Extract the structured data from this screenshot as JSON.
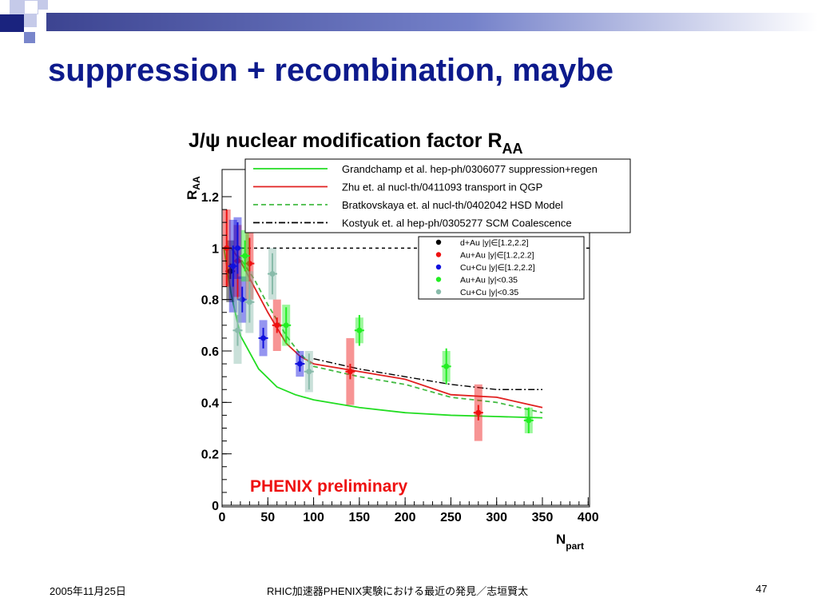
{
  "slide": {
    "title": "suppression + recombination, maybe",
    "footer_date": "2005年11月25日",
    "footer_center": "RHIC加速器PHENIX実験における最近の発見／志垣賢太",
    "page_number": "47"
  },
  "colors": {
    "title": "#0d1a8c",
    "accent_dark": "#1a237e",
    "accent_light": "#c5cae9",
    "grandchamp": "#22dd22",
    "zhu": "#e02020",
    "bratkovskaya": "#44bb44",
    "kostyuk": "#000000",
    "dAu": "#000000",
    "AuAu_fwd": "#ee1111",
    "CuCu_fwd": "#1111dd",
    "AuAu_mid": "#22ee22",
    "CuCu_mid": "#88bbaa",
    "preliminary": "#ee1111"
  },
  "chart_data": {
    "type": "scatter",
    "title": "J/ψ nuclear modification factor R",
    "title_subscript": "AA",
    "xlabel": "N",
    "xlabel_subscript": "part",
    "ylabel": "R",
    "ylabel_subscript": "AA",
    "xlim": [
      0,
      400
    ],
    "ylim": [
      0,
      1.25
    ],
    "xticks": [
      "0",
      "50",
      "100",
      "150",
      "200",
      "250",
      "300",
      "350",
      "400"
    ],
    "yticks": [
      "0",
      "0.2",
      "0.4",
      "0.6",
      "0.8",
      "1",
      "1.2"
    ],
    "reference_line": 1.0,
    "annotation": "PHENIX preliminary",
    "models": [
      {
        "name": "Grandchamp et al. hep-ph/0306077 suppression+regen",
        "style": "solid",
        "color_key": "grandchamp",
        "x": [
          2,
          10,
          20,
          40,
          60,
          80,
          100,
          150,
          200,
          250,
          300,
          350
        ],
        "y": [
          1.0,
          0.82,
          0.66,
          0.53,
          0.46,
          0.43,
          0.41,
          0.38,
          0.36,
          0.35,
          0.345,
          0.34
        ]
      },
      {
        "name": "Zhu et. al nucl-th/0411093 transport in QGP",
        "style": "solid",
        "color_key": "zhu",
        "x": [
          2,
          10,
          20,
          35,
          50,
          70,
          85,
          100,
          150,
          200,
          250,
          300,
          350
        ],
        "y": [
          1.0,
          1.0,
          0.95,
          0.85,
          0.75,
          0.63,
          0.58,
          0.55,
          0.52,
          0.49,
          0.43,
          0.42,
          0.38
        ]
      },
      {
        "name": "Bratkovskaya et. al nucl-th/0402042 HSD Model",
        "style": "dashed",
        "color_key": "bratkovskaya",
        "x": [
          2,
          10,
          20,
          35,
          50,
          70,
          85,
          100,
          150,
          200,
          250,
          300,
          350
        ],
        "y": [
          1.0,
          1.0,
          0.96,
          0.88,
          0.78,
          0.66,
          0.59,
          0.54,
          0.5,
          0.47,
          0.42,
          0.4,
          0.36
        ]
      },
      {
        "name": "Kostyuk et. al hep-ph/0305277 SCM Coalescence",
        "style": "dashdot",
        "color_key": "kostyuk",
        "x": [
          100,
          150,
          200,
          250,
          300,
          350
        ],
        "y": [
          0.57,
          0.53,
          0.5,
          0.47,
          0.45,
          0.45
        ]
      }
    ],
    "series": [
      {
        "name": "d+Au |y|∈[1.2,2.2]",
        "color_key": "dAu",
        "x": [
          9
        ],
        "y": [
          0.91
        ],
        "stat": [
          0.03
        ],
        "sys": [
          0.12
        ]
      },
      {
        "name": "Au+Au |y|∈[1.2,2.2]",
        "color_key": "AuAu_fwd",
        "x": [
          5,
          17,
          30,
          60,
          140,
          280
        ],
        "y": [
          1.0,
          0.95,
          0.94,
          0.7,
          0.52,
          0.36
        ],
        "stat": [
          0.15,
          0.15,
          0.1,
          0.03,
          0.03,
          0.03
        ],
        "sys": [
          0.15,
          0.14,
          0.14,
          0.1,
          0.13,
          0.11
        ]
      },
      {
        "name": "Cu+Cu |y|∈[1.2,2.2]",
        "color_key": "CuCu_fwd",
        "x": [
          12,
          17,
          22,
          45,
          85
        ],
        "y": [
          0.93,
          1.0,
          0.8,
          0.65,
          0.55
        ],
        "stat": [
          0.08,
          0.1,
          0.05,
          0.04,
          0.03
        ],
        "sys": [
          0.18,
          0.12,
          0.09,
          0.07,
          0.05
        ]
      },
      {
        "name": "Au+Au |y|<0.35",
        "color_key": "AuAu_mid",
        "x": [
          25,
          70,
          150,
          245,
          335
        ],
        "y": [
          0.97,
          0.7,
          0.68,
          0.54,
          0.33
        ],
        "stat": [
          0.06,
          0.07,
          0.06,
          0.07,
          0.05
        ],
        "sys": [
          0.1,
          0.08,
          0.05,
          0.06,
          0.05
        ]
      },
      {
        "name": "Cu+Cu |y|<0.35",
        "color_key": "CuCu_mid",
        "x": [
          17,
          30,
          55,
          95
        ],
        "y": [
          0.68,
          0.79,
          0.9,
          0.52
        ],
        "stat": [
          0.06,
          0.08,
          0.08,
          0.07
        ],
        "sys": [
          0.13,
          0.12,
          0.1,
          0.08
        ]
      }
    ]
  }
}
